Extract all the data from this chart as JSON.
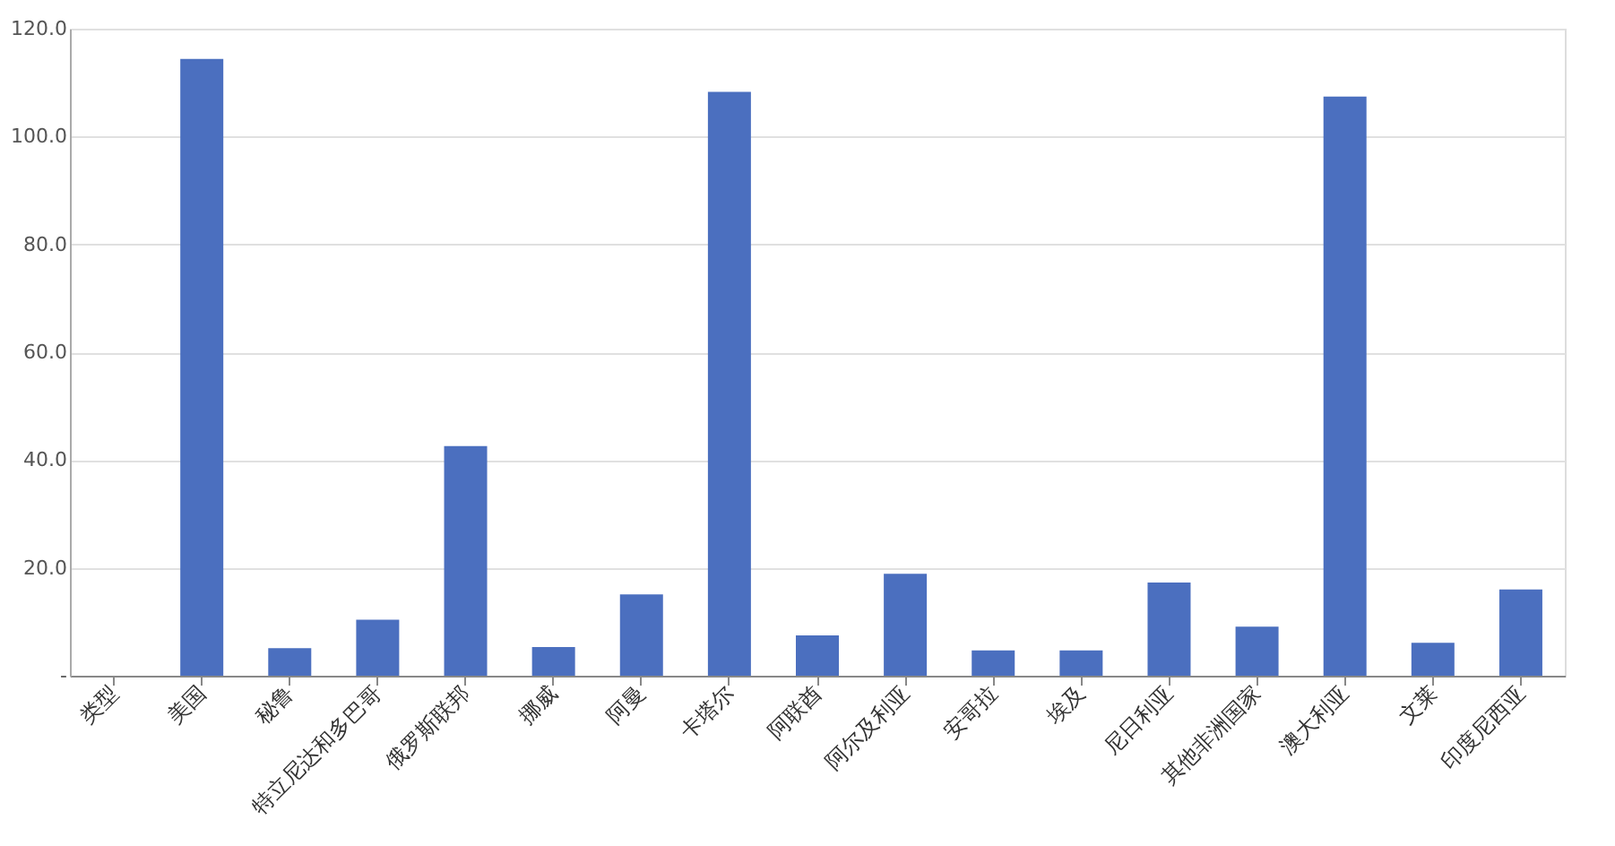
{
  "chart_data": {
    "type": "bar",
    "categories": [
      "类型",
      "美国",
      "秘鲁",
      "特立尼达和多巴哥",
      "俄罗斯联邦",
      "挪威",
      "阿曼",
      "卡塔尔",
      "阿联酋",
      "阿尔及利亚",
      "安哥拉",
      "埃及",
      "尼日利亚",
      "其他非洲国家",
      "澳大利亚",
      "文莱",
      "印度尼西亚"
    ],
    "values": [
      null,
      114.4,
      5.1,
      10.4,
      42.6,
      5.3,
      15.1,
      108.3,
      7.5,
      18.9,
      4.7,
      4.7,
      17.3,
      9.1,
      107.4,
      6.1,
      16.0
    ],
    "color": "#4b6fbf",
    "ylim": [
      0,
      120
    ],
    "yticks": [
      {
        "value": 0,
        "label": "-"
      },
      {
        "value": 20,
        "label": "20.0"
      },
      {
        "value": 40,
        "label": "40.0"
      },
      {
        "value": 60,
        "label": "60.0"
      },
      {
        "value": 80,
        "label": "80.0"
      },
      {
        "value": 100,
        "label": "100.0"
      },
      {
        "value": 120,
        "label": "120.0"
      }
    ],
    "grid": "y"
  }
}
